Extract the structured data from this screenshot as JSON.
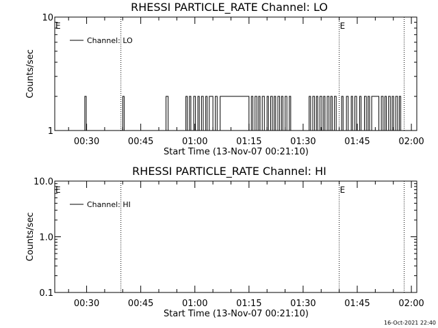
{
  "chart_data": [
    {
      "type": "line",
      "title": "RHESSI PARTICLE_RATE Channel: LO",
      "xlabel": "Start Time (13-Nov-07 00:21:10)",
      "ylabel": "Counts/sec",
      "yscale": "log",
      "ylim": [
        1,
        10
      ],
      "ytick_labels": [
        "1",
        "10"
      ],
      "xlim": [
        "00:21:10",
        "02:01:30"
      ],
      "xtick_labels": [
        "00:30",
        "00:45",
        "01:00",
        "01:15",
        "01:30",
        "01:45",
        "02:00"
      ],
      "grid": false,
      "legend": {
        "position": "top-left",
        "entries": [
          "Channel: LO"
        ]
      },
      "event_lines": [
        "00:39:30",
        "01:40:00",
        "01:58:00"
      ],
      "event_labels": [
        {
          "text": "E",
          "at": "00:21:10"
        },
        {
          "text": "E",
          "at": "01:40:00"
        }
      ],
      "series": [
        {
          "name": "Channel: LO",
          "baseline": 1,
          "spikes": [
            {
              "t": "00:29:30",
              "dur_min": 0.4,
              "value": 2
            },
            {
              "t": "00:40:00",
              "dur_min": 0.4,
              "value": 2
            },
            {
              "t": "00:52:00",
              "dur_min": 0.6,
              "value": 2
            },
            {
              "t": "00:57:30",
              "dur_min": 0.4,
              "value": 2
            },
            {
              "t": "00:58:30",
              "dur_min": 0.4,
              "value": 2
            },
            {
              "t": "00:59:40",
              "dur_min": 0.5,
              "value": 2
            },
            {
              "t": "01:00:50",
              "dur_min": 0.4,
              "value": 2
            },
            {
              "t": "01:01:50",
              "dur_min": 0.5,
              "value": 2
            },
            {
              "t": "01:03:00",
              "dur_min": 0.4,
              "value": 2
            },
            {
              "t": "01:04:00",
              "dur_min": 1.0,
              "value": 2
            },
            {
              "t": "01:05:40",
              "dur_min": 0.5,
              "value": 2
            },
            {
              "t": "01:07:00",
              "dur_min": 8.0,
              "value": 2
            },
            {
              "t": "01:15:40",
              "dur_min": 0.4,
              "value": 2
            },
            {
              "t": "01:16:40",
              "dur_min": 0.5,
              "value": 2
            },
            {
              "t": "01:17:40",
              "dur_min": 0.4,
              "value": 2
            },
            {
              "t": "01:18:40",
              "dur_min": 0.6,
              "value": 2
            },
            {
              "t": "01:20:00",
              "dur_min": 0.4,
              "value": 2
            },
            {
              "t": "01:21:00",
              "dur_min": 0.5,
              "value": 2
            },
            {
              "t": "01:22:00",
              "dur_min": 0.4,
              "value": 2
            },
            {
              "t": "01:23:00",
              "dur_min": 0.5,
              "value": 2
            },
            {
              "t": "01:24:00",
              "dur_min": 0.4,
              "value": 2
            },
            {
              "t": "01:25:00",
              "dur_min": 0.5,
              "value": 2
            },
            {
              "t": "01:26:10",
              "dur_min": 0.4,
              "value": 2
            },
            {
              "t": "01:31:40",
              "dur_min": 0.4,
              "value": 2
            },
            {
              "t": "01:32:40",
              "dur_min": 0.5,
              "value": 2
            },
            {
              "t": "01:33:40",
              "dur_min": 0.4,
              "value": 2
            },
            {
              "t": "01:34:40",
              "dur_min": 0.5,
              "value": 2
            },
            {
              "t": "01:35:40",
              "dur_min": 0.4,
              "value": 2
            },
            {
              "t": "01:36:40",
              "dur_min": 0.5,
              "value": 2
            },
            {
              "t": "01:37:40",
              "dur_min": 0.4,
              "value": 2
            },
            {
              "t": "01:38:40",
              "dur_min": 0.5,
              "value": 2
            },
            {
              "t": "01:40:40",
              "dur_min": 0.4,
              "value": 2
            },
            {
              "t": "01:42:00",
              "dur_min": 0.5,
              "value": 2
            },
            {
              "t": "01:43:20",
              "dur_min": 0.4,
              "value": 2
            },
            {
              "t": "01:44:20",
              "dur_min": 0.5,
              "value": 2
            },
            {
              "t": "01:45:40",
              "dur_min": 0.4,
              "value": 2
            },
            {
              "t": "01:47:00",
              "dur_min": 0.5,
              "value": 2
            },
            {
              "t": "01:48:00",
              "dur_min": 0.4,
              "value": 2
            },
            {
              "t": "01:49:00",
              "dur_min": 2.0,
              "value": 2
            },
            {
              "t": "01:51:40",
              "dur_min": 0.5,
              "value": 2
            },
            {
              "t": "01:52:40",
              "dur_min": 0.4,
              "value": 2
            },
            {
              "t": "01:53:40",
              "dur_min": 0.5,
              "value": 2
            },
            {
              "t": "01:54:40",
              "dur_min": 0.4,
              "value": 2
            },
            {
              "t": "01:55:40",
              "dur_min": 0.5,
              "value": 2
            },
            {
              "t": "01:56:40",
              "dur_min": 0.4,
              "value": 2
            }
          ]
        }
      ]
    },
    {
      "type": "line",
      "title": "RHESSI PARTICLE_RATE Channel: HI",
      "xlabel": "Start Time (13-Nov-07 00:21:10)",
      "ylabel": "Counts/sec",
      "yscale": "log",
      "ylim": [
        0.1,
        10
      ],
      "ytick_labels": [
        "0.1",
        "1.0",
        "10.0"
      ],
      "xlim": [
        "00:21:10",
        "02:01:30"
      ],
      "xtick_labels": [
        "00:30",
        "00:45",
        "01:00",
        "01:15",
        "01:30",
        "01:45",
        "02:00"
      ],
      "grid": false,
      "legend": {
        "position": "top-left",
        "entries": [
          "Channel: HI"
        ]
      },
      "event_lines": [
        "00:39:30",
        "01:40:00",
        "01:58:00"
      ],
      "event_labels": [
        {
          "text": "E",
          "at": "00:21:10"
        },
        {
          "text": "E",
          "at": "01:40:00"
        }
      ],
      "series": [
        {
          "name": "Channel: HI",
          "spikes": []
        }
      ]
    }
  ],
  "footer": {
    "timestamp": "16-Oct-2021 22:40"
  }
}
